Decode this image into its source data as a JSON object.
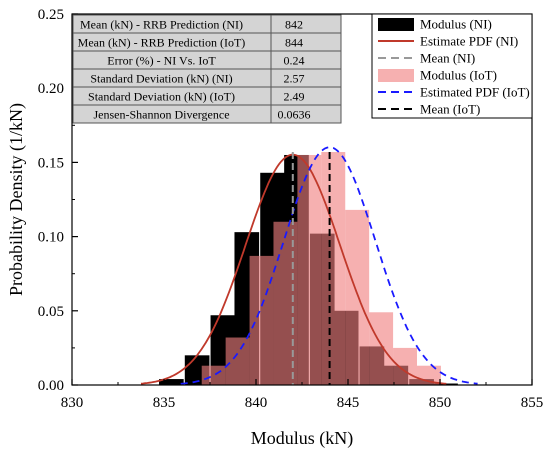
{
  "chart_data": {
    "type": "bar",
    "xlabel": "Modulus (kN)",
    "ylabel": "Probability Density (1/kN)",
    "xlim": [
      830,
      855
    ],
    "ylim": [
      0,
      0.25
    ],
    "x_ticks": [
      "830",
      "835",
      "840",
      "845",
      "850",
      "855"
    ],
    "y_ticks": [
      "0.00",
      "0.05",
      "0.10",
      "0.15",
      "0.20",
      "0.25"
    ],
    "grid": false,
    "legend_position": "top-right",
    "series": [
      {
        "name": "Modulus (NI)",
        "kind": "histogram",
        "color": "#000000",
        "bin_width": 1.34,
        "bin_centers": [
          835.4,
          836.8,
          838.2,
          839.5,
          840.9,
          842.2,
          843.6,
          844.9,
          846.3,
          847.6,
          849.0,
          850.3
        ],
        "values": [
          0.004,
          0.02,
          0.047,
          0.103,
          0.143,
          0.155,
          0.102,
          0.05,
          0.026,
          0.013,
          0.004,
          0.001
        ]
      },
      {
        "name": "Estimate PDF (NI)",
        "kind": "normal_pdf",
        "color": "#c0392b",
        "mean": 842,
        "std": 2.57
      },
      {
        "name": "Mean (NI)",
        "kind": "vline",
        "color": "#999999",
        "x": 842
      },
      {
        "name": "Modulus (IoT)",
        "kind": "histogram",
        "color": "#f08080",
        "bin_width": 1.3,
        "bin_centers": [
          837.7,
          839.0,
          840.3,
          841.6,
          842.9,
          844.2,
          845.5,
          846.8,
          848.1,
          849.4
        ],
        "values": [
          0.013,
          0.032,
          0.087,
          0.11,
          0.155,
          0.157,
          0.118,
          0.049,
          0.025,
          0.013
        ]
      },
      {
        "name": "Estimated PDF (IoT)",
        "kind": "normal_pdf",
        "color": "#1a1aff",
        "mean": 844,
        "std": 2.49
      },
      {
        "name": "Mean (IoT)",
        "kind": "vline",
        "color": "#000000",
        "x": 844
      }
    ],
    "stats_table": [
      {
        "label": "Mean (kN) - RRB Prediction (NI)",
        "value": "842"
      },
      {
        "label": "Mean (kN) - RRB Prediction (IoT)",
        "value": "844"
      },
      {
        "label": "Error (%) - NI Vs. IoT",
        "value": "0.24"
      },
      {
        "label": "Standard Deviation (kN) (NI)",
        "value": "2.57"
      },
      {
        "label": "Standard Deviation (kN) (IoT)",
        "value": "2.49"
      },
      {
        "label": "Jensen-Shannon Divergence",
        "value": "0.0636"
      }
    ]
  }
}
